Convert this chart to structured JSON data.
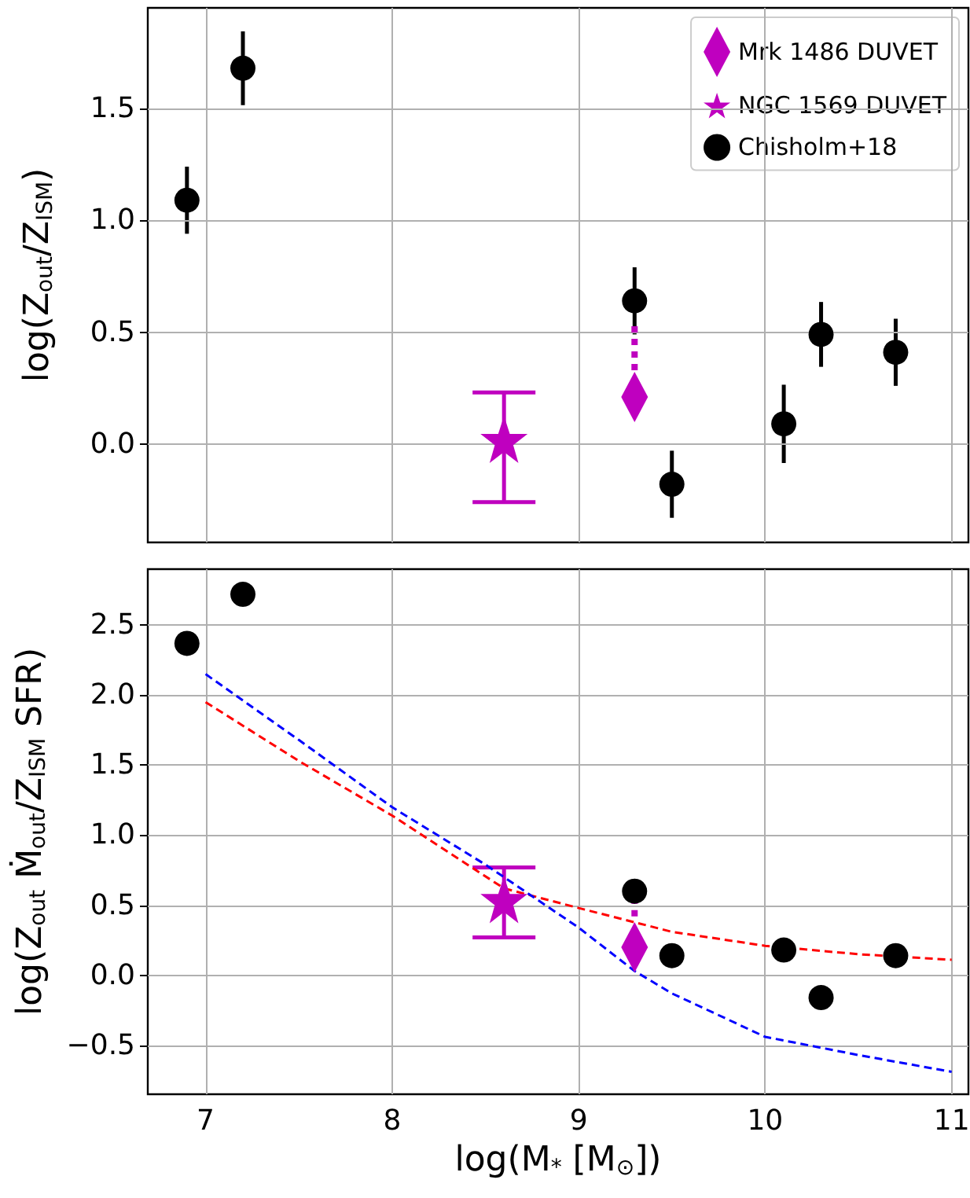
{
  "chart_data": [
    {
      "type": "scatter",
      "ylabel": "log(Z$_{out}$/Z$_{ISM}$)",
      "xlim": [
        6.69,
        11.09
      ],
      "xticks": [
        7,
        8,
        9,
        10,
        11
      ],
      "ylim": [
        -0.44,
        1.95
      ],
      "yticks": [
        {
          "value": 0,
          "label": "0.0"
        },
        0.5,
        {
          "value": 1,
          "label": "1.0"
        },
        1.5
      ],
      "grid": true,
      "legend": "top right",
      "tick_labels": "y",
      "series": [
        {
          "type": "line",
          "color": "#bf00bf",
          "line_style": "dotted",
          "marker": "none",
          "x": [
            9.3,
            9.3
          ],
          "values": [
            0.33,
            0.55
          ]
        },
        {
          "name": "Mrk 1486 DUVET",
          "color": "#bf00bf",
          "marker": "diamond",
          "x": [
            9.3
          ],
          "values": [
            0.21
          ]
        },
        {
          "name": "NGC 1569 DUVET",
          "color": "#bf00bf",
          "marker": "star",
          "x": [
            8.6
          ],
          "values": [
            0.02
          ],
          "errors": [
            [
              -0.26,
              0.23
            ]
          ]
        },
        {
          "name": "Chisholm+18",
          "color": "#000000",
          "marker": "circle",
          "x": [
            6.9,
            7.2,
            9.3,
            9.5,
            10.1,
            10.3,
            10.7
          ],
          "values": [
            1.09,
            1.68,
            0.64,
            -0.18,
            0.09,
            0.49,
            0.41
          ],
          "errors": [
            0.15,
            0.165,
            0.15,
            0.15,
            0.175,
            0.145,
            0.15
          ]
        }
      ]
    },
    {
      "type": "scatter",
      "xlabel": "log(M$_{*}$ [M$_{⊙}$])",
      "ylabel": "log(Z$_{out}$ Ṁ$_{out}$/Z$_{ISM}$ SFR)",
      "xlim": [
        6.69,
        11.09
      ],
      "xticks": [
        7,
        8,
        9,
        10,
        11
      ],
      "ylim": [
        -0.85,
        2.9
      ],
      "yticks": [
        -0.5,
        {
          "value": 0,
          "label": "0.0"
        },
        0.5,
        {
          "value": 1,
          "label": "1.0"
        },
        1.5,
        {
          "value": 2,
          "label": "2.0"
        },
        2.5
      ],
      "grid": true,
      "legend": false,
      "series": [
        {
          "type": "line",
          "color": "#ff0000",
          "line_style": "dashed",
          "marker": "none",
          "x": [
            7,
            7.5,
            8,
            8.6,
            9,
            9.5,
            10,
            10.5,
            11
          ],
          "values": [
            1.95,
            1.53,
            1.14,
            0.62,
            0.48,
            0.31,
            0.21,
            0.15,
            0.11
          ]
        },
        {
          "type": "line",
          "color": "#0000ff",
          "line_style": "dashed",
          "marker": "none",
          "x": [
            7,
            7.5,
            8,
            8.5,
            9,
            9.3,
            9.5,
            10,
            10.5,
            11
          ],
          "values": [
            2.15,
            1.68,
            1.2,
            0.79,
            0.34,
            0.03,
            -0.13,
            -0.44,
            -0.57,
            -0.69
          ]
        },
        {
          "type": "line",
          "color": "#bf00bf",
          "line_style": "dotted",
          "marker": "none",
          "x": [
            9.3,
            9.3
          ],
          "values": [
            0.42,
            0.58
          ]
        },
        {
          "color": "#bf00bf",
          "marker": "diamond",
          "x": [
            9.3
          ],
          "values": [
            0.2
          ]
        },
        {
          "color": "#bf00bf",
          "marker": "star",
          "x": [
            8.6
          ],
          "values": [
            0.54
          ],
          "errors": [
            [
              0.27,
              0.77
            ]
          ]
        },
        {
          "color": "#000000",
          "marker": "circle",
          "x": [
            6.9,
            7.2,
            9.3,
            9.5,
            10.1,
            10.3,
            10.7
          ],
          "values": [
            2.37,
            2.72,
            0.6,
            0.14,
            0.18,
            -0.16,
            0.14
          ]
        }
      ]
    }
  ]
}
